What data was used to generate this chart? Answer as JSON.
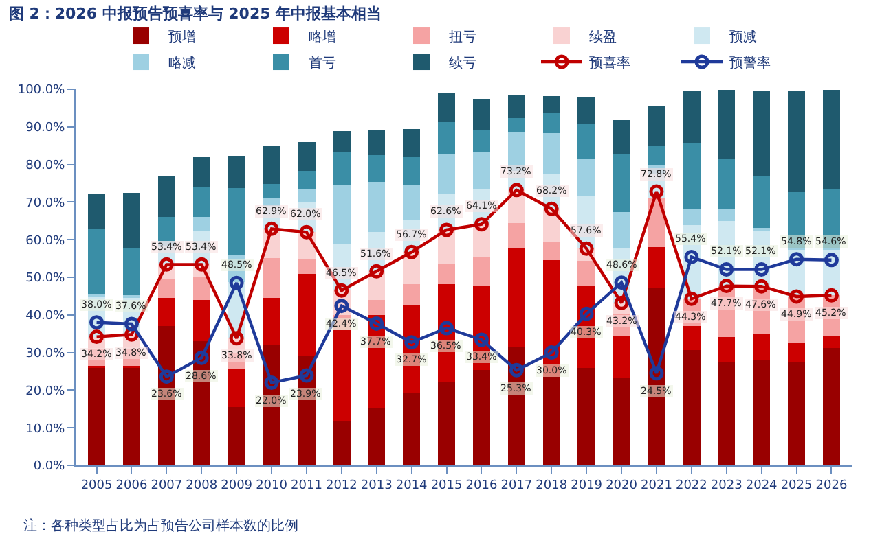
{
  "chart_data": {
    "type": "bar",
    "stacked": true,
    "title": "图 2：2026 中报预告预喜率与 2025 年中报基本相当",
    "legend": "top",
    "marker": "circle",
    "categories": [
      "2005",
      "2006",
      "2007",
      "2008",
      "2009",
      "2010",
      "2011",
      "2012",
      "2013",
      "2014",
      "2015",
      "2016",
      "2017",
      "2018",
      "2019",
      "2020",
      "2021",
      "2022",
      "2023",
      "2024",
      "2025",
      "2026"
    ],
    "ylim": [
      0,
      100
    ],
    "yticks": [
      {
        "value": 0,
        "label": "0.0%"
      },
      {
        "value": 10,
        "label": "10.0%"
      },
      {
        "value": 20,
        "label": "20.0%"
      },
      {
        "value": 30,
        "label": "30.0%"
      },
      {
        "value": 40,
        "label": "40.0%"
      },
      {
        "value": 50,
        "label": "50.0%"
      },
      {
        "value": 60,
        "label": "60.0%"
      },
      {
        "value": 70,
        "label": "70.0%"
      },
      {
        "value": 80,
        "label": "80.0%"
      },
      {
        "value": 90,
        "label": "90.0%"
      },
      {
        "value": 100,
        "label": "100.0%"
      }
    ],
    "series": [
      {
        "name": "预增",
        "color": "#990000",
        "values": [
          26,
          26,
          37,
          33,
          15.5,
          32,
          29,
          11.6,
          15.4,
          19.3,
          22,
          25.3,
          31.5,
          23.5,
          25.9,
          23.1,
          47.2,
          30.6,
          27.3,
          27.9,
          27.4,
          31.2
        ]
      },
      {
        "name": "略增",
        "color": "#cc0000",
        "values": [
          0.5,
          0.5,
          7.5,
          11,
          10,
          12.6,
          22,
          24.4,
          24.6,
          23.4,
          26.2,
          22.5,
          26.4,
          31.1,
          21.9,
          11.3,
          10.9,
          6.5,
          6.9,
          6.9,
          5,
          3.2
        ]
      },
      {
        "name": "扭亏",
        "color": "#f5a3a3",
        "values": [
          4.5,
          4.5,
          5,
          6,
          4.5,
          10.5,
          4,
          4,
          4,
          5.5,
          5.2,
          7.7,
          6.5,
          4.7,
          6.5,
          5.9,
          12.8,
          7.2,
          13.5,
          12.8,
          12.5,
          10.8
        ]
      },
      {
        "name": "续盈",
        "color": "#f9d2d2",
        "values": [
          3.2,
          3.8,
          3.9,
          3.4,
          3.8,
          7.8,
          7,
          6.5,
          7.6,
          8.5,
          9.2,
          8.6,
          8.8,
          8.9,
          3.3,
          2.9,
          null,
          null,
          null,
          null,
          null,
          null
        ]
      },
      {
        "name": "预减",
        "color": "#cfe8f1",
        "values": [
          10.7,
          10,
          5,
          9,
          15,
          6,
          8,
          12.5,
          10.4,
          8.5,
          9.5,
          9.2,
          5,
          9.3,
          13.9,
          14.7,
          6.4,
          19.5,
          17.3,
          15.1,
          12.5,
          12.2
        ]
      },
      {
        "name": "略减",
        "color": "#9ed0e2",
        "values": [
          0.5,
          0.5,
          1.2,
          3.6,
          7,
          2,
          3.3,
          15.5,
          13.3,
          9.5,
          10.7,
          10.1,
          10.3,
          10.9,
          9.8,
          9.5,
          2.4,
          4.4,
          3,
          0.5,
          0.5,
          0.5
        ]
      },
      {
        "name": "首亏",
        "color": "#3a8ea6",
        "values": [
          17.5,
          12.5,
          6.4,
          8,
          18,
          4,
          5,
          8.9,
          7.1,
          7.2,
          8.5,
          5.9,
          3.8,
          5.3,
          9.4,
          15.4,
          5.1,
          17.6,
          13.6,
          13.9,
          14.8,
          15.4
        ]
      },
      {
        "name": "续亏",
        "color": "#1f5a6e",
        "values": [
          9.3,
          14.6,
          11,
          8,
          8.5,
          10,
          7.6,
          5.5,
          6.9,
          7.5,
          7.8,
          8.2,
          6.2,
          4.5,
          7.2,
          9,
          10.6,
          13.9,
          18.2,
          22.6,
          27,
          26.5
        ]
      },
      {
        "name": "预喜率",
        "type": "line",
        "color": "#c00000",
        "values": [
          34.2,
          34.8,
          53.4,
          53.4,
          33.8,
          62.9,
          62,
          46.5,
          51.6,
          56.7,
          62.6,
          64.1,
          73.2,
          68.2,
          57.6,
          43.2,
          72.8,
          44.3,
          47.7,
          47.6,
          44.9,
          45.2
        ],
        "value_labels": [
          "34.2%",
          "34.8%",
          "53.4%",
          "53.4%",
          "33.8%",
          "62.9%",
          "62.0%",
          "46.5%",
          "51.6%",
          "56.7%",
          "62.6%",
          "64.1%",
          "73.2%",
          "68.2%",
          "57.6%",
          "43.2%",
          "72.8%",
          "44.3%",
          "47.7%",
          "47.6%",
          "44.9%",
          "45.2%"
        ]
      },
      {
        "name": "预警率",
        "type": "line",
        "color": "#1f3a9a",
        "values": [
          38,
          37.6,
          23.6,
          28.6,
          48.5,
          22,
          23.9,
          42.4,
          37.7,
          32.7,
          36.5,
          33.4,
          25.3,
          30,
          40.3,
          48.6,
          24.5,
          55.4,
          52.1,
          52.1,
          54.8,
          54.6
        ],
        "value_labels": [
          "38.0%",
          "37.6%",
          "23.6%",
          "28.6%",
          "48.5%",
          "22.0%",
          "23.9%",
          "42.4%",
          "37.7%",
          "32.7%",
          "36.5%",
          "33.4%",
          "25.3%",
          "30.0%",
          "40.3%",
          "48.6%",
          "24.5%",
          "55.4%",
          "52.1%",
          "52.1%",
          "54.8%",
          "54.6%"
        ]
      }
    ],
    "annotations": [
      "注：各种类型占比为占预告公司样本数的比例"
    ]
  }
}
